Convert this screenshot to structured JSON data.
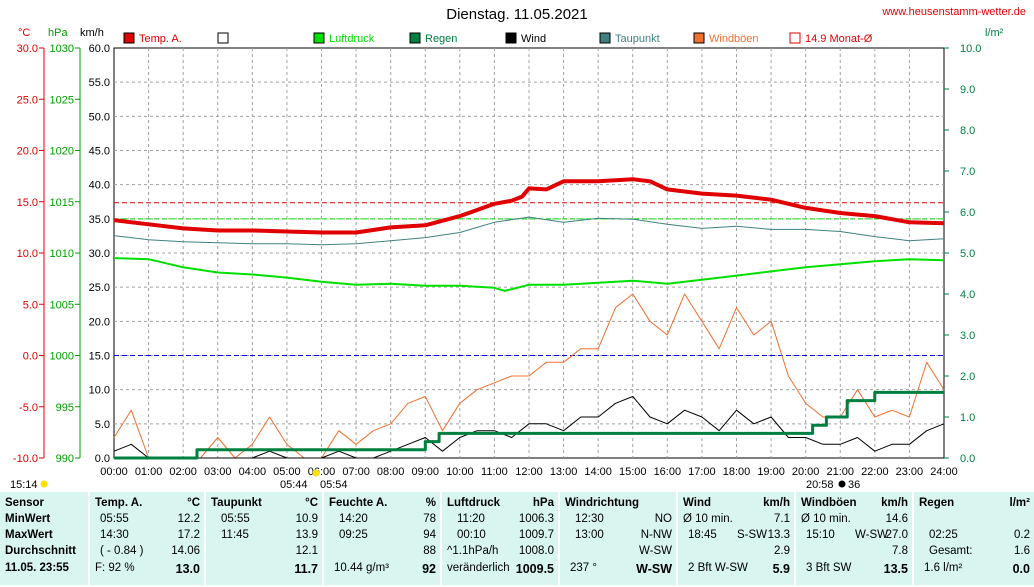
{
  "header": {
    "title": "Dienstag. 11.05.2021",
    "site": "www.heusenstamm-wetter.de"
  },
  "legend": [
    {
      "label": "Temp. A.",
      "color": "#e00000",
      "style": "fill"
    },
    {
      "label": "",
      "color": "#000000",
      "style": "box"
    },
    {
      "label": "Luftdruck",
      "color": "#00e000",
      "style": "fill"
    },
    {
      "label": "Regen",
      "color": "#008040",
      "style": "fill"
    },
    {
      "label": "Wind",
      "color": "#000000",
      "style": "fill"
    },
    {
      "label": "Taupunkt",
      "color": "#408080",
      "style": "fill"
    },
    {
      "label": "Windböen",
      "color": "#f07030",
      "style": "fill"
    },
    {
      "label": "14.9 Monat-Ø",
      "color": "#e00000",
      "style": "box"
    }
  ],
  "axis_units": {
    "temp": "°C",
    "pressure": "hPa",
    "wind": "km/h",
    "rain": "l/m²"
  },
  "axis_ticks": {
    "temp": [
      "30.0",
      "25.0",
      "20.0",
      "15.0",
      "10.0",
      "5.0",
      "0.0",
      "-5.0",
      "-10.0"
    ],
    "pressure": [
      "1030",
      "1025",
      "1020",
      "1015",
      "1010",
      "1005",
      "1000",
      "995",
      "990"
    ],
    "wind": [
      "60.0",
      "55.0",
      "50.0",
      "45.0",
      "40.0",
      "35.0",
      "30.0",
      "25.0",
      "20.0",
      "15.0",
      "10.0",
      "5.0",
      "0.0"
    ],
    "rain": [
      "10.0",
      "9.0",
      "8.0",
      "7.0",
      "6.0",
      "5.0",
      "4.0",
      "3.0",
      "2.0",
      "1.0",
      "0.0"
    ],
    "time": [
      "00:00",
      "01:00",
      "02:00",
      "03:00",
      "04:00",
      "05:00",
      "06:00",
      "07:00",
      "08:00",
      "09:00",
      "10:00",
      "11:00",
      "12:00",
      "13:00",
      "14:00",
      "15:00",
      "16:00",
      "17:00",
      "18:00",
      "19:00",
      "20:00",
      "21:00",
      "22:00",
      "23:00",
      "24:00"
    ]
  },
  "markers": {
    "time_now": "15:14",
    "sunrise": "05:44",
    "sunrise2": "05:54",
    "sunset": "20:58",
    "sunset2": "36"
  },
  "chart_data": {
    "type": "line",
    "title": "Dienstag. 11.05.2021",
    "x_unit": "hours",
    "xlim": [
      0,
      24
    ],
    "ylim_temp": [
      -10,
      30
    ],
    "ylim_pressure": [
      990,
      1030
    ],
    "ylim_wind": [
      0,
      60
    ],
    "ylim_rain": [
      0,
      10
    ],
    "reference_lines": [
      {
        "name": "14.9 Monat-Ø",
        "axis": "temp",
        "value": 14.9,
        "color": "#e00000"
      },
      {
        "name": "",
        "axis": "wind",
        "value": 35,
        "color": "#00e000"
      },
      {
        "name": "",
        "axis": "wind",
        "value": 15,
        "color": "#0000e0"
      }
    ],
    "series": [
      {
        "name": "Temp. A.",
        "axis": "temp",
        "color": "#e00000",
        "width": 4,
        "x": [
          0,
          1,
          2,
          3,
          4,
          5,
          6,
          6.5,
          7,
          8,
          9,
          10,
          10.5,
          11,
          11.5,
          11.8,
          12,
          12.5,
          13,
          14,
          15,
          15.5,
          16,
          17,
          18,
          19,
          20,
          21,
          22,
          23,
          24
        ],
        "y": [
          13.2,
          12.8,
          12.4,
          12.2,
          12.2,
          12.1,
          12.0,
          12.0,
          12.0,
          12.5,
          12.7,
          13.6,
          14.2,
          14.8,
          15.1,
          15.5,
          16.3,
          16.2,
          17.0,
          17.0,
          17.2,
          17.0,
          16.2,
          15.8,
          15.6,
          15.2,
          14.4,
          13.9,
          13.6,
          13.0,
          12.9
        ]
      },
      {
        "name": "Taupunkt",
        "axis": "temp",
        "color": "#408080",
        "width": 1,
        "x": [
          0,
          1,
          2,
          3,
          4,
          5,
          6,
          7,
          8,
          9,
          10,
          10.5,
          11,
          12,
          13,
          14,
          15,
          16,
          17,
          18,
          19,
          20,
          21,
          22,
          23,
          24
        ],
        "y": [
          11.7,
          11.3,
          11.1,
          11.0,
          10.9,
          10.9,
          10.8,
          10.9,
          11.2,
          11.5,
          12.0,
          12.5,
          13.0,
          13.5,
          13.0,
          13.4,
          13.3,
          12.8,
          12.4,
          12.6,
          12.3,
          12.3,
          12.1,
          11.6,
          11.2,
          11.4
        ]
      },
      {
        "name": "Luftdruck",
        "axis": "pressure",
        "color": "#00e000",
        "width": 2,
        "x": [
          0,
          1,
          2,
          3,
          4,
          5,
          6,
          7,
          8,
          9,
          10,
          11,
          11.3,
          12,
          13,
          14,
          15,
          16,
          17,
          18,
          19,
          20,
          21,
          22,
          23,
          24
        ],
        "y": [
          1009.5,
          1009.4,
          1008.6,
          1008.1,
          1007.9,
          1007.6,
          1007.2,
          1006.9,
          1007.0,
          1006.8,
          1006.8,
          1006.6,
          1006.3,
          1006.9,
          1006.9,
          1007.1,
          1007.3,
          1007.0,
          1007.4,
          1007.8,
          1008.2,
          1008.6,
          1008.9,
          1009.2,
          1009.4,
          1009.3
        ]
      },
      {
        "name": "Windböen",
        "axis": "wind",
        "color": "#f07030",
        "width": 1,
        "x": [
          0,
          0.5,
          1,
          1.5,
          2,
          2.5,
          3,
          3.5,
          4,
          4.5,
          5,
          5.5,
          6,
          6.5,
          7,
          7.5,
          8,
          8.5,
          9,
          9.5,
          10,
          10.5,
          11,
          11.5,
          12,
          12.5,
          13,
          13.5,
          14,
          14.5,
          15,
          15.5,
          16,
          16.5,
          17,
          17.5,
          18,
          18.5,
          19,
          19.5,
          20,
          20.5,
          21,
          21.5,
          22,
          22.5,
          23,
          23.5,
          24
        ],
        "y": [
          3,
          7,
          0,
          0,
          0,
          0,
          3,
          0,
          2,
          6,
          2,
          0,
          0,
          4,
          2,
          4,
          5,
          8,
          9,
          4,
          8,
          10,
          11,
          12,
          12,
          14,
          14,
          16,
          16,
          22,
          24,
          20,
          18,
          24,
          20,
          16,
          22,
          18,
          20,
          12,
          8,
          6,
          6,
          10,
          6,
          7,
          6,
          14,
          10
        ]
      },
      {
        "name": "Wind",
        "axis": "wind",
        "color": "#000000",
        "width": 1,
        "x": [
          0,
          0.5,
          1,
          1.5,
          2,
          2.5,
          3,
          3.5,
          4,
          4.5,
          5,
          5.5,
          6,
          6.5,
          7,
          7.5,
          8,
          8.5,
          9,
          9.5,
          10,
          10.5,
          11,
          11.5,
          12,
          12.5,
          13,
          13.5,
          14,
          14.5,
          15,
          15.5,
          16,
          16.5,
          17,
          17.5,
          18,
          18.5,
          19,
          19.5,
          20,
          20.5,
          21,
          21.5,
          22,
          22.5,
          23,
          23.5,
          24
        ],
        "y": [
          1,
          2,
          0,
          0,
          0,
          0,
          0,
          0,
          0,
          1,
          0,
          0,
          0,
          1,
          0,
          0,
          1,
          2,
          3,
          1,
          3,
          4,
          4,
          3,
          5,
          5,
          4,
          6,
          6,
          8,
          9,
          6,
          5,
          7,
          6,
          4,
          7,
          5,
          6,
          3,
          3,
          2,
          2,
          3,
          1,
          2,
          2,
          4,
          5
        ]
      },
      {
        "name": "Regen",
        "axis": "rain",
        "color": "#008040",
        "width": 3,
        "x": [
          0,
          2.4,
          2.4,
          9.0,
          9.0,
          9.4,
          9.4,
          19.8,
          19.8,
          20.2,
          20.2,
          20.6,
          20.6,
          21.2,
          21.2,
          22.0,
          22.0,
          24
        ],
        "y": [
          0,
          0,
          0.2,
          0.2,
          0.4,
          0.4,
          0.6,
          0.6,
          0.6,
          0.6,
          0.8,
          0.8,
          1.0,
          1.0,
          1.4,
          1.4,
          1.6,
          1.6
        ]
      }
    ]
  },
  "stats": {
    "sensor": {
      "head": "Sensor",
      "rows": [
        "MinWert",
        "MaxWert",
        "Durchschnitt"
      ],
      "foot": "11.05. 23:55"
    },
    "temp": {
      "head": "Temp. A.",
      "unit": "°C",
      "rows": [
        [
          "05:55",
          "12.2"
        ],
        [
          "14:30",
          "17.2"
        ],
        [
          "( - 0.84 )",
          "14.06"
        ]
      ],
      "foot": [
        "F: 92 %",
        "13.0"
      ]
    },
    "taupunkt": {
      "head": "Taupunkt",
      "unit": "°C",
      "rows": [
        [
          "05:55",
          "10.9"
        ],
        [
          "11:45",
          "13.9"
        ],
        [
          "",
          "12.1"
        ]
      ],
      "foot": [
        "",
        "11.7"
      ]
    },
    "feuchte": {
      "head": "Feuchte A.",
      "unit": "%",
      "rows": [
        [
          "14:20",
          "78"
        ],
        [
          "09:25",
          "94"
        ],
        [
          "",
          "88"
        ]
      ],
      "foot": [
        "10.44 g/m³",
        "92"
      ]
    },
    "luftdruck": {
      "head": "Luftdruck",
      "unit": "hPa",
      "rows": [
        [
          "11:20",
          "1006.3"
        ],
        [
          "00:10",
          "1009.7"
        ],
        [
          "^1.1hPa/h",
          "1008.0"
        ]
      ],
      "foot": [
        "veränderlich",
        "1009.5"
      ]
    },
    "windrichtung": {
      "head": "Windrichtung",
      "unit": "",
      "rows": [
        [
          "12:30",
          "NO"
        ],
        [
          "13:00",
          "N-NW"
        ],
        [
          "",
          "W-SW"
        ]
      ],
      "foot": [
        "237 °",
        "W-SW"
      ]
    },
    "wind": {
      "head": "Wind",
      "unit": "km/h",
      "rows": [
        [
          "Ø 10 min.",
          "",
          "7.1"
        ],
        [
          "18:45",
          "S-SW",
          "13.3"
        ],
        [
          "",
          "",
          "2.9"
        ]
      ],
      "foot": [
        "2 Bft W-SW",
        "5.9"
      ]
    },
    "windboeen": {
      "head": "Windböen",
      "unit": "km/h",
      "rows": [
        [
          "Ø 10 min.",
          "",
          "14.6"
        ],
        [
          "15:10",
          "W-SW",
          "27.0"
        ],
        [
          "",
          "",
          "7.8"
        ]
      ],
      "foot": [
        "3 Bft SW",
        "13.5"
      ]
    },
    "regen": {
      "head": "Regen",
      "unit": "l/m²",
      "rows": [
        [
          "",
          ""
        ],
        [
          "02:25",
          "0.2"
        ],
        [
          "Gesamt:",
          "1.6"
        ]
      ],
      "foot": [
        "1.6 l/m²",
        "0.0"
      ]
    }
  }
}
